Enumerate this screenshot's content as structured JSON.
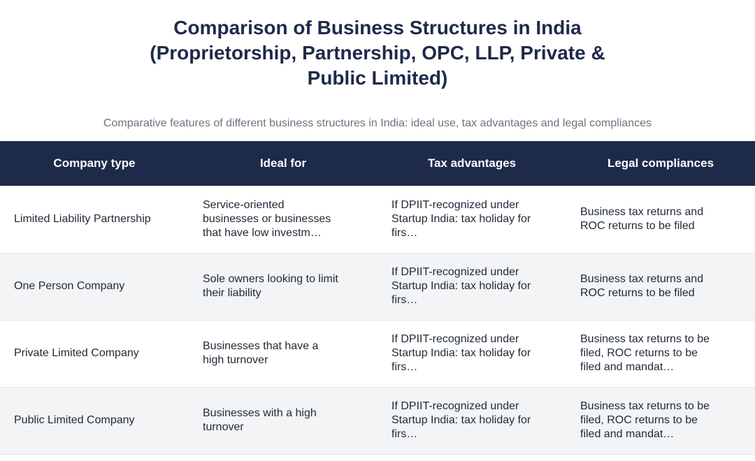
{
  "header": {
    "title": "Comparison of Business Structures in India (Proprietorship, Partnership, OPC, LLP, Private & Public Limited)",
    "subtitle": "Comparative features of different business structures in India: ideal use, tax advantages and legal compliances"
  },
  "table": {
    "columns": [
      "Company type",
      "Ideal for",
      "Tax advantages",
      "Legal compliances"
    ],
    "rows": [
      {
        "company_type": "Limited Liability Partnership",
        "ideal_for": "Service-oriented businesses or businesses that have low investm…",
        "tax_advantages": "If DPIIT-recognized under Startup India: tax holiday for firs…",
        "legal_compliances": "Business tax returns and ROC returns to be filed"
      },
      {
        "company_type": "One Person Company",
        "ideal_for": "Sole owners looking to limit their liability",
        "tax_advantages": "If DPIIT-recognized under Startup India: tax holiday for firs…",
        "legal_compliances": "Business tax returns and ROC returns to be filed"
      },
      {
        "company_type": "Private Limited Company",
        "ideal_for": "Businesses that have a high turnover",
        "tax_advantages": "If DPIIT-recognized under Startup India: tax holiday for firs…",
        "legal_compliances": "Business tax returns to be filed, ROC returns to be filed and mandat…"
      },
      {
        "company_type": "Public Limited Company",
        "ideal_for": "Businesses with a high turnover",
        "tax_advantages": "If DPIIT-recognized under Startup India: tax holiday for firs…",
        "legal_compliances": "Business tax returns to be filed, ROC returns to be filed and mandat…"
      }
    ]
  }
}
